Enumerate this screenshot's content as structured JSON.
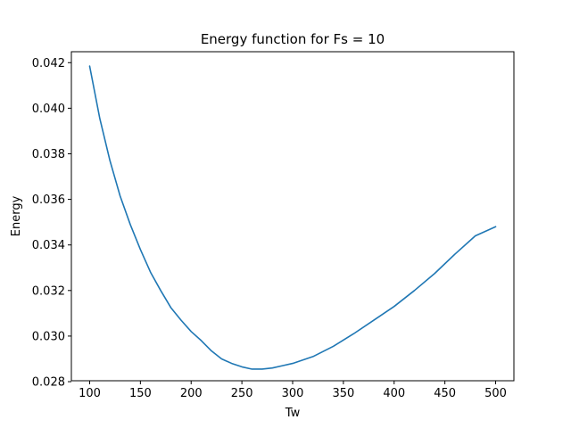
{
  "chart_data": {
    "type": "line",
    "title": "Energy function for Fs = 10",
    "xlabel": "Tw",
    "ylabel": "Energy",
    "xlim": [
      82,
      518
    ],
    "ylim": [
      0.02804,
      0.04248
    ],
    "x_ticks": [
      100,
      150,
      200,
      250,
      300,
      350,
      400,
      450,
      500
    ],
    "x_tick_labels": [
      "100",
      "150",
      "200",
      "250",
      "300",
      "350",
      "400",
      "450",
      "500"
    ],
    "y_ticks": [
      0.028,
      0.03,
      0.032,
      0.034,
      0.036,
      0.038,
      0.04,
      0.042
    ],
    "y_tick_labels": [
      "0.028",
      "0.030",
      "0.032",
      "0.034",
      "0.036",
      "0.038",
      "0.040",
      "0.042"
    ],
    "grid": false,
    "series_color": "#1f77b4",
    "x": [
      100,
      110,
      120,
      130,
      140,
      150,
      160,
      170,
      180,
      190,
      200,
      210,
      220,
      230,
      240,
      250,
      260,
      270,
      280,
      290,
      300,
      320,
      340,
      360,
      380,
      400,
      420,
      440,
      460,
      480,
      500
    ],
    "y": [
      0.04185,
      0.03955,
      0.0377,
      0.03615,
      0.0349,
      0.0338,
      0.0328,
      0.032,
      0.03125,
      0.0307,
      0.0302,
      0.0298,
      0.02935,
      0.029,
      0.0288,
      0.02865,
      0.02855,
      0.02855,
      0.0286,
      0.0287,
      0.0288,
      0.0291,
      0.02955,
      0.0301,
      0.0307,
      0.0313,
      0.032,
      0.03275,
      0.0336,
      0.0344,
      0.0348
    ]
  }
}
